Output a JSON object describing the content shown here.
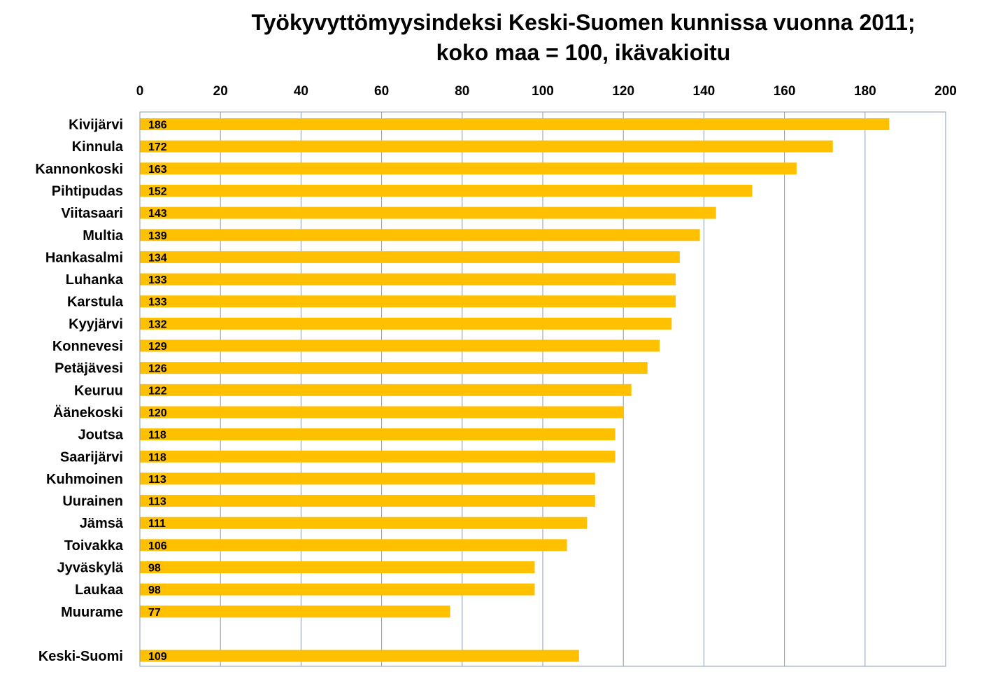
{
  "chart_data": {
    "type": "bar",
    "orientation": "horizontal",
    "title_line1": "Työkyvyttömyysindeksi Keski-Suomen kunnissa vuonna  2011;",
    "title_line2": "koko maa = 100, ikävakioitu",
    "xlabel": "",
    "ylabel": "",
    "xlim": [
      0,
      200
    ],
    "x_ticks": [
      0,
      20,
      40,
      60,
      80,
      100,
      120,
      140,
      160,
      180,
      200
    ],
    "axis_position": "top",
    "grid": "vertical",
    "categories": [
      "Kivijärvi",
      "Kinnula",
      "Kannonkoski",
      "Pihtipudas",
      "Viitasaari",
      "Multia",
      "Hankasalmi",
      "Luhanka",
      "Karstula",
      "Kyyjärvi",
      "Konnevesi",
      "Petäjävesi",
      "Keuruu",
      "Äänekoski",
      "Joutsa",
      "Saarijärvi",
      "Kuhmoinen",
      "Uurainen",
      "Jämsä",
      "Toivakka",
      "Jyväskylä",
      "Laukaa",
      "Muurame",
      "",
      "Keski-Suomi"
    ],
    "values": [
      186,
      172,
      163,
      152,
      143,
      139,
      134,
      133,
      133,
      132,
      129,
      126,
      122,
      120,
      118,
      118,
      113,
      113,
      111,
      106,
      98,
      98,
      77,
      null,
      109
    ],
    "data_labels": [
      "186",
      "172",
      "163",
      "152",
      "143",
      "139",
      "134",
      "133",
      "133",
      "132",
      "129",
      "126",
      "122",
      "120",
      "118",
      "118",
      "113",
      "113",
      "111",
      "106",
      "98",
      "98",
      "77",
      "",
      "109"
    ],
    "bar_color": "#FFC000",
    "grid_color": "#8C9AAA",
    "text_color": "#000000"
  }
}
